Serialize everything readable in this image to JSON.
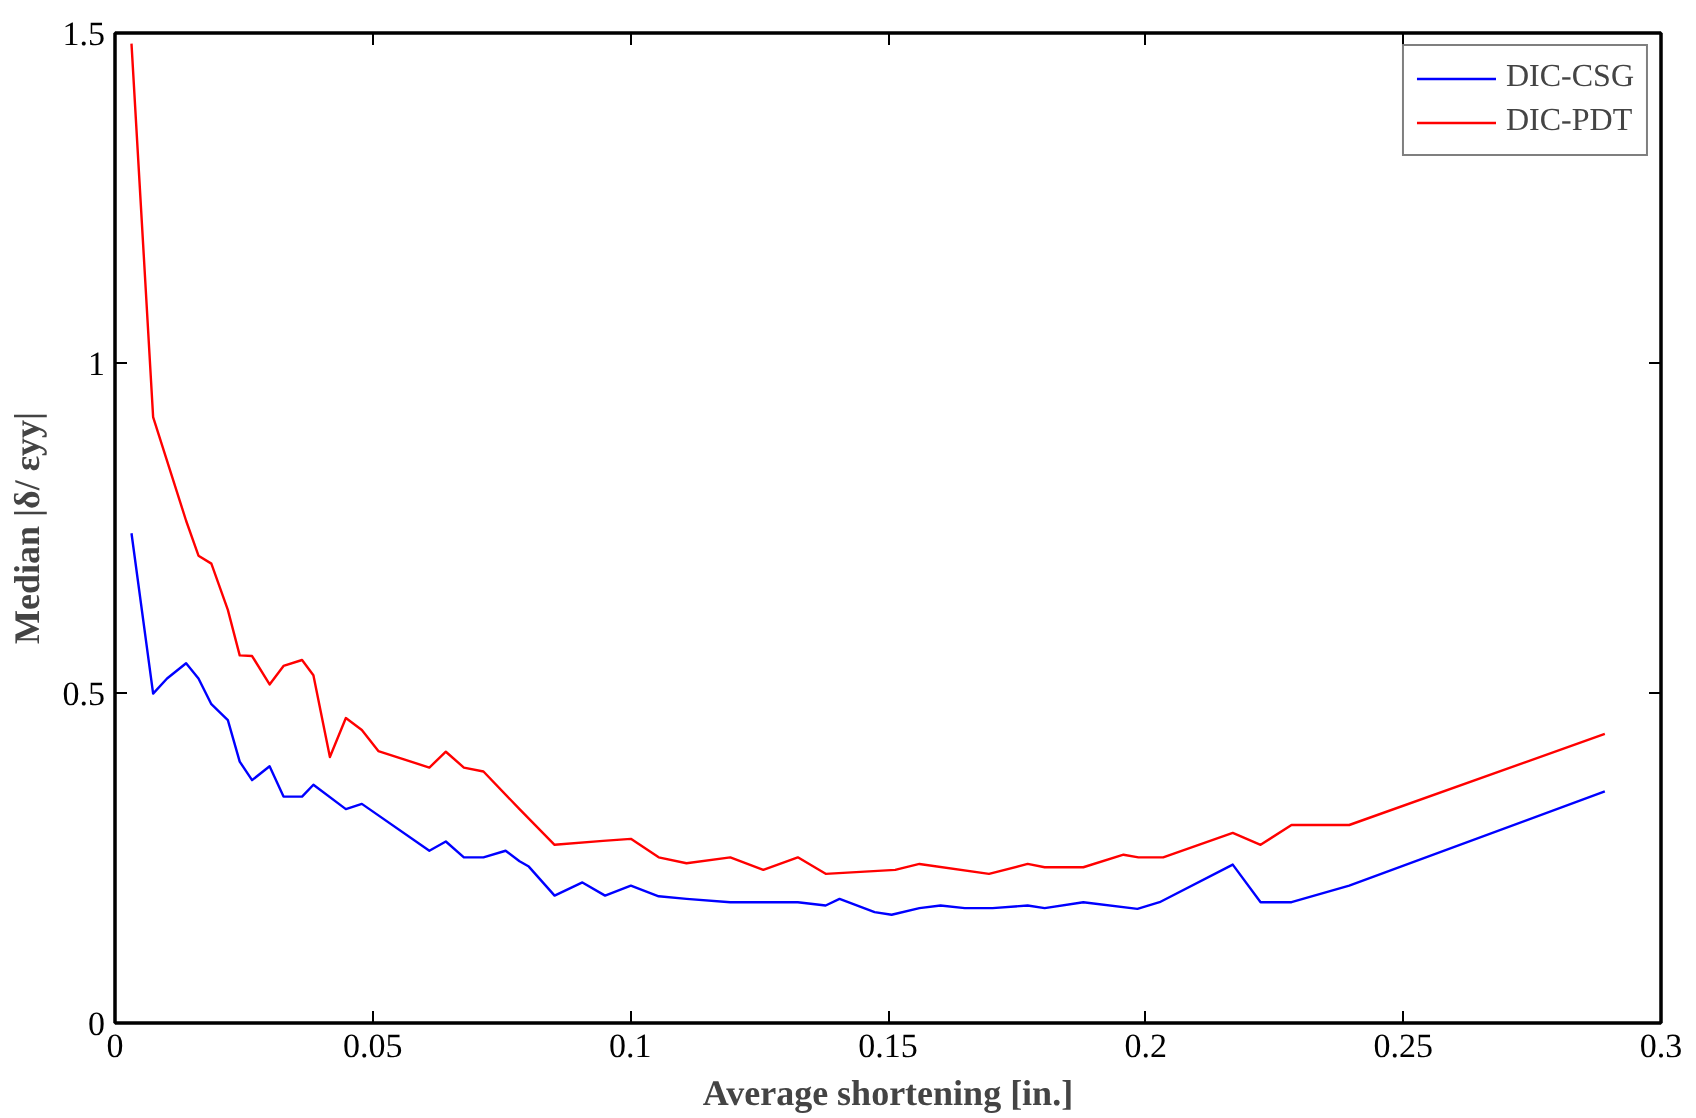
{
  "chart_data": {
    "type": "line",
    "xlabel": "Average shortening [in.]",
    "ylabel": "Median |δ/ εyy|",
    "xlim": [
      0,
      0.3
    ],
    "xticks": [
      0,
      0.05,
      0.1,
      0.15,
      0.2,
      0.25,
      0.3
    ],
    "ylim": [
      0,
      1.5
    ],
    "yticks": [
      0,
      0.5,
      1,
      1.5
    ],
    "grid": false,
    "legend": "top right",
    "marker": "none",
    "line_style": "solid",
    "series": [
      {
        "name": "DIC-CSG",
        "color": "#0000ff",
        "x": [
          0.0032,
          0.0074,
          0.0101,
          0.0138,
          0.0162,
          0.0187,
          0.0219,
          0.0242,
          0.0266,
          0.03,
          0.0327,
          0.0363,
          0.0385,
          0.0448,
          0.0479,
          0.061,
          0.0642,
          0.0677,
          0.0715,
          0.0758,
          0.0785,
          0.0803,
          0.0853,
          0.0907,
          0.0951,
          0.1001,
          0.1055,
          0.1109,
          0.1194,
          0.1325,
          0.1379,
          0.1406,
          0.1474,
          0.1507,
          0.1561,
          0.1602,
          0.1649,
          0.1703,
          0.1771,
          0.1804,
          0.1879,
          0.1984,
          0.2027,
          0.2169,
          0.2223,
          0.2283,
          0.2395,
          0.2891
        ],
        "values": [
          0.742,
          0.499,
          0.522,
          0.545,
          0.522,
          0.483,
          0.459,
          0.396,
          0.368,
          0.389,
          0.343,
          0.343,
          0.361,
          0.324,
          0.332,
          0.261,
          0.275,
          0.251,
          0.251,
          0.261,
          0.245,
          0.237,
          0.193,
          0.213,
          0.193,
          0.208,
          0.192,
          0.188,
          0.183,
          0.183,
          0.178,
          0.188,
          0.168,
          0.164,
          0.174,
          0.178,
          0.174,
          0.174,
          0.178,
          0.174,
          0.183,
          0.173,
          0.183,
          0.24,
          0.183,
          0.183,
          0.208,
          0.351
        ]
      },
      {
        "name": "DIC-PDT",
        "color": "#ff0000",
        "x": [
          0.0032,
          0.0074,
          0.0138,
          0.0162,
          0.0187,
          0.0219,
          0.0242,
          0.0266,
          0.03,
          0.0327,
          0.0363,
          0.0385,
          0.0417,
          0.0448,
          0.0479,
          0.0511,
          0.061,
          0.0642,
          0.0677,
          0.0715,
          0.0785,
          0.0853,
          0.0947,
          0.1001,
          0.1055,
          0.1109,
          0.1194,
          0.1258,
          0.1325,
          0.1379,
          0.1514,
          0.1561,
          0.1696,
          0.1771,
          0.1804,
          0.1879,
          0.1957,
          0.1986,
          0.2034,
          0.2169,
          0.2223,
          0.2283,
          0.2395,
          0.2891
        ],
        "values": [
          1.484,
          0.918,
          0.761,
          0.708,
          0.696,
          0.626,
          0.557,
          0.556,
          0.513,
          0.541,
          0.55,
          0.527,
          0.403,
          0.462,
          0.444,
          0.412,
          0.387,
          0.411,
          0.387,
          0.381,
          0.324,
          0.27,
          0.276,
          0.279,
          0.251,
          0.242,
          0.251,
          0.232,
          0.251,
          0.226,
          0.232,
          0.241,
          0.226,
          0.241,
          0.236,
          0.236,
          0.255,
          0.251,
          0.251,
          0.288,
          0.27,
          0.3,
          0.3,
          0.438
        ]
      }
    ]
  }
}
